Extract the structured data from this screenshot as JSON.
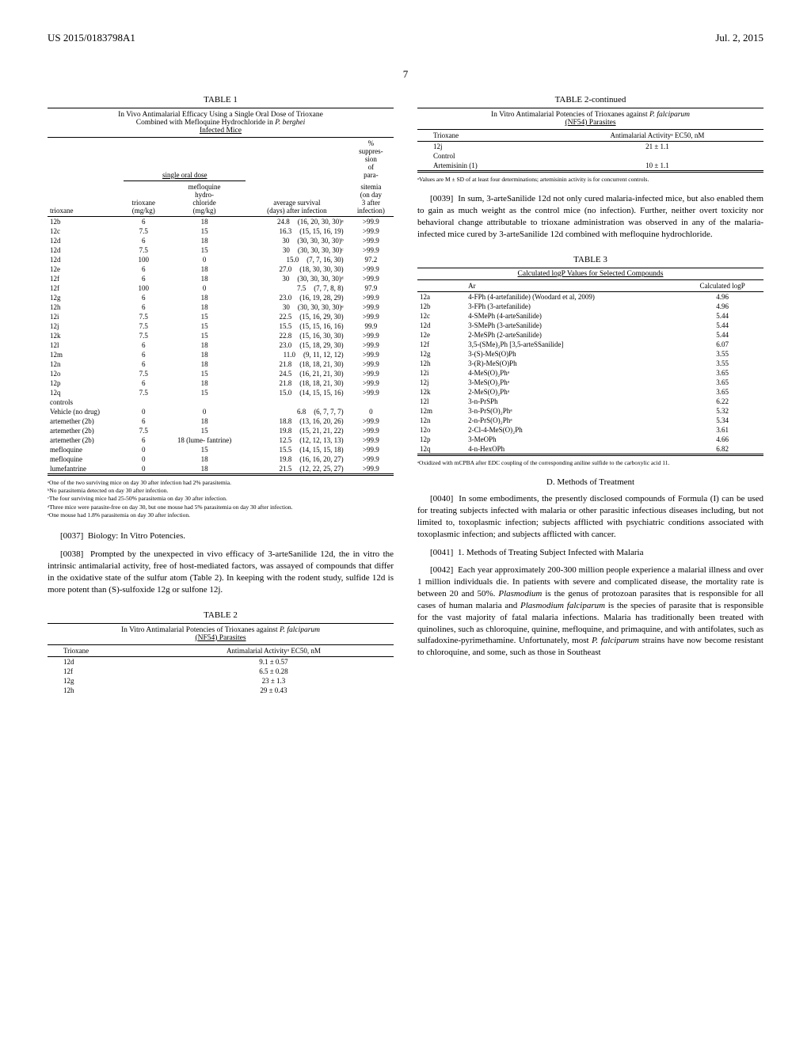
{
  "header": {
    "doc_id": "US 2015/0183798A1",
    "date": "Jul. 2, 2015"
  },
  "page_number": "7",
  "table1": {
    "label": "TABLE 1",
    "caption": "In Vivo Antimalarial Efficacy Using a Single Oral Dose of Trioxane Combined with Mefloquine Hydrochloride in P. berghei Infected Mice",
    "dose_group_header": "single oral dose",
    "headers": {
      "trioxane": "trioxane",
      "trioxane_mg": "trioxane (mg/kg)",
      "mefloquine": "mefloquine hydro- chloride (mg/kg)",
      "survival": "average survival (days) after infection",
      "suppression": "% suppres- sion of para-",
      "suppression2": "sitemia (on day 3 after infection)"
    },
    "rows": [
      {
        "t": "12b",
        "a": "6",
        "b": "18",
        "c": "24.8",
        "d": "(16, 20, 30, 30)ᵃ",
        "e": ">99.9"
      },
      {
        "t": "12c",
        "a": "7.5",
        "b": "15",
        "c": "16.3",
        "d": "(15, 15, 16, 19)",
        "e": ">99.9"
      },
      {
        "t": "12d",
        "a": "6",
        "b": "18",
        "c": "30",
        "d": "(30, 30, 30, 30)ᵇ",
        "e": ">99.9"
      },
      {
        "t": "12d",
        "a": "7.5",
        "b": "15",
        "c": "30",
        "d": "(30, 30, 30, 30)ᶜ",
        "e": ">99.9"
      },
      {
        "t": "12d",
        "a": "100",
        "b": "0",
        "c": "15.0",
        "d": "(7, 7, 16, 30)",
        "e": "97.2"
      },
      {
        "t": "12e",
        "a": "6",
        "b": "18",
        "c": "27.0",
        "d": "(18, 30, 30, 30)",
        "e": ">99.9"
      },
      {
        "t": "12f",
        "a": "6",
        "b": "18",
        "c": "30",
        "d": "(30, 30, 30, 30)ᵈ",
        "e": ">99.9"
      },
      {
        "t": "12f",
        "a": "100",
        "b": "0",
        "c": "7.5",
        "d": "(7, 7, 8, 8)",
        "e": "97.9"
      },
      {
        "t": "12g",
        "a": "6",
        "b": "18",
        "c": "23.0",
        "d": "(16, 19, 28, 29)",
        "e": ">99.9"
      },
      {
        "t": "12h",
        "a": "6",
        "b": "18",
        "c": "30",
        "d": "(30, 30, 30, 30)ᵉ",
        "e": ">99.9"
      },
      {
        "t": "12i",
        "a": "7.5",
        "b": "15",
        "c": "22.5",
        "d": "(15, 16, 29, 30)",
        "e": ">99.9"
      },
      {
        "t": "12j",
        "a": "7.5",
        "b": "15",
        "c": "15.5",
        "d": "(15, 15, 16, 16)",
        "e": "99.9"
      },
      {
        "t": "12k",
        "a": "7.5",
        "b": "15",
        "c": "22.8",
        "d": "(15, 16, 30, 30)",
        "e": ">99.9"
      },
      {
        "t": "12l",
        "a": "6",
        "b": "18",
        "c": "23.0",
        "d": "(15, 18, 29, 30)",
        "e": ">99.9"
      },
      {
        "t": "12m",
        "a": "6",
        "b": "18",
        "c": "11.0",
        "d": "(9, 11, 12, 12)",
        "e": ">99.9"
      },
      {
        "t": "12n",
        "a": "6",
        "b": "18",
        "c": "21.8",
        "d": "(18, 18, 21, 30)",
        "e": ">99.9"
      },
      {
        "t": "12o",
        "a": "7.5",
        "b": "15",
        "c": "24.5",
        "d": "(16, 21, 21, 30)",
        "e": ">99.9"
      },
      {
        "t": "12p",
        "a": "6",
        "b": "18",
        "c": "21.8",
        "d": "(18, 18, 21, 30)",
        "e": ">99.9"
      },
      {
        "t": "12q",
        "a": "7.5",
        "b": "15",
        "c": "15.0",
        "d": "(14, 15, 15, 16)",
        "e": ">99.9"
      },
      {
        "t": "controls",
        "a": "",
        "b": "",
        "c": "",
        "d": "",
        "e": ""
      },
      {
        "t": "Vehicle (no drug)",
        "a": "0",
        "b": "0",
        "c": "6.8",
        "d": "(6, 7, 7, 7)",
        "e": "0"
      },
      {
        "t": "artemether (2b)",
        "a": "6",
        "b": "18",
        "c": "18.8",
        "d": "(13, 16, 20, 26)",
        "e": ">99.9"
      },
      {
        "t": "artemether (2b)",
        "a": "7.5",
        "b": "15",
        "c": "19.8",
        "d": "(15, 21, 21, 22)",
        "e": ">99.9"
      },
      {
        "t": "artemether (2b)",
        "a": "6",
        "b": "18 (lume- fantrine)",
        "c": "12.5",
        "d": "(12, 12, 13, 13)",
        "e": ">99.9"
      },
      {
        "t": "mefloquine",
        "a": "0",
        "b": "15",
        "c": "15.5",
        "d": "(14, 15, 15, 18)",
        "e": ">99.9"
      },
      {
        "t": "mefloquine",
        "a": "0",
        "b": "18",
        "c": "19.8",
        "d": "(16, 16, 20, 27)",
        "e": ">99.9"
      },
      {
        "t": "lumefantrine",
        "a": "0",
        "b": "18",
        "c": "21.5",
        "d": "(12, 22, 25, 27)",
        "e": ">99.9"
      }
    ],
    "footnotes": [
      "ᵃOne of the two surviving mice on day 30 after infection had 2% parasitemia.",
      "ᵇNo parasitemia detected on day 30 after infection.",
      "ᶜThe four surviving mice had 25-50% parasitemia on day 30 after infection.",
      "ᵈThree mice were parasite-free on day 30, but one mouse had 5% parasitemia on day 30 after infection.",
      "ᵉOne mouse had 1.8% parasitemia on day 30 after infection."
    ]
  },
  "para37": {
    "num": "[0037]",
    "text": "Biology: In Vitro Potencies."
  },
  "para38": {
    "num": "[0038]",
    "text": "Prompted by the unexpected in vivo efficacy of 3-arteSanilide 12d, the in vitro the intrinsic antimalarial activity, free of host-mediated factors, was assayed of compounds that differ in the oxidative state of the sulfur atom (Table 2). In keeping with the rodent study, sulfide 12d is more potent than (S)-sulfoxide 12g or sulfone 12j."
  },
  "table2": {
    "label": "TABLE 2",
    "caption": "In Vitro Antimalarial Potencies of Trioxanes against P. falciparum (NF54) Parasites",
    "h1": "Trioxane",
    "h2": "Antimalarial Activityᵃ EC50, nM",
    "rows": [
      {
        "t": "12d",
        "v": "9.1 ± 0.57"
      },
      {
        "t": "12f",
        "v": "6.5 ± 0.28"
      },
      {
        "t": "12g",
        "v": "23 ± 1.3"
      },
      {
        "t": "12h",
        "v": "29 ± 0.43"
      }
    ]
  },
  "table2c": {
    "label": "TABLE 2-continued",
    "rows": [
      {
        "t": "12j",
        "v": "21 ± 1.1"
      },
      {
        "t": "Control",
        "v": ""
      },
      {
        "t": "Artemisinin (1)",
        "v": "10 ± 1.1"
      }
    ],
    "footnote": "ᵃValues are M ± SD of at least four determinations; artemisinin activity is for concurrent controls."
  },
  "para39": {
    "num": "[0039]",
    "text": "In sum, 3-arteSanilide 12d not only cured malaria-infected mice, but also enabled them to gain as much weight as the control mice (no infection). Further, neither overt toxicity nor behavioral change attributable to trioxane administration was observed in any of the malaria-infected mice cured by 3-arteSanilide 12d combined with mefloquine hydrochloride."
  },
  "table3": {
    "label": "TABLE 3",
    "caption": "Calculated logP Values for Selected Compounds",
    "h1": "",
    "h2": "Ar",
    "h3": "Calculated logP",
    "rows": [
      {
        "c": "12a",
        "ar": "4-FPh (4-artefanilide) (Woodard et al, 2009)",
        "lp": "4.96"
      },
      {
        "c": "12b",
        "ar": "3-FPh (3-artefanilide)",
        "lp": "4.96"
      },
      {
        "c": "12c",
        "ar": "4-SMePh (4-arteSanilide)",
        "lp": "5.44"
      },
      {
        "c": "12d",
        "ar": "3-SMePh (3-arteSanilide)",
        "lp": "5.44"
      },
      {
        "c": "12e",
        "ar": "2-MeSPh (2-arteSanilide)",
        "lp": "5.44"
      },
      {
        "c": "12f",
        "ar": "3,5-(SMe)₂Ph [3,5-arteSSanilide]",
        "lp": "6.07"
      },
      {
        "c": "12g",
        "ar": "3-(S)-MeS(O)Ph",
        "lp": "3.55"
      },
      {
        "c": "12h",
        "ar": "3-(R)-MeS(O)Ph",
        "lp": "3.55"
      },
      {
        "c": "12i",
        "ar": "4-MeS(O)₂Phᵃ",
        "lp": "3.65"
      },
      {
        "c": "12j",
        "ar": "3-MeS(O)₂Phᵃ",
        "lp": "3.65"
      },
      {
        "c": "12k",
        "ar": "2-MeS(O)₂Phᵃ",
        "lp": "3.65"
      },
      {
        "c": "12l",
        "ar": "3-n-PrSPh",
        "lp": "6.22"
      },
      {
        "c": "12m",
        "ar": "3-n-PrS(O)₂Phᵃ",
        "lp": "5.32"
      },
      {
        "c": "12n",
        "ar": "2-n-PrS(O)₂Phᵃ",
        "lp": "5.34"
      },
      {
        "c": "12o",
        "ar": "2-Cl-4-MeS(O)₂Ph",
        "lp": "3.61"
      },
      {
        "c": "12p",
        "ar": "3-MeOPh",
        "lp": "4.66"
      },
      {
        "c": "12q",
        "ar": "4-n-HexOPh",
        "lp": "6.82"
      }
    ],
    "footnote": "ᵃOxidized with mCPBA after EDC coupling of the corresponding aniline sulfide to the carboxylic acid 11."
  },
  "section_d": "D. Methods of Treatment",
  "para40": {
    "num": "[0040]",
    "text": "In some embodiments, the presently disclosed compounds of Formula (I) can be used for treating subjects infected with malaria or other parasitic infectious diseases including, but not limited to, toxoplasmic infection; subjects afflicted with psychiatric conditions associated with toxoplasmic infection; and subjects afflicted with cancer."
  },
  "para41": {
    "num": "[0041]",
    "text": "1. Methods of Treating Subject Infected with Malaria"
  },
  "para42": {
    "num": "[0042]",
    "text": "Each year approximately 200-300 million people experience a malarial illness and over 1 million individuals die. In patients with severe and complicated disease, the mortality rate is between 20 and 50%. Plasmodium is the genus of protozoan parasites that is responsible for all cases of human malaria and Plasmodium falciparum is the species of parasite that is responsible for the vast majority of fatal malaria infections. Malaria has traditionally been treated with quinolines, such as chloroquine, quinine, mefloquine, and primaquine, and with antifolates, such as sulfadoxine-pyrimethamine. Unfortunately, most P. falciparum strains have now become resistant to chloroquine, and some, such as those in Southeast"
  }
}
